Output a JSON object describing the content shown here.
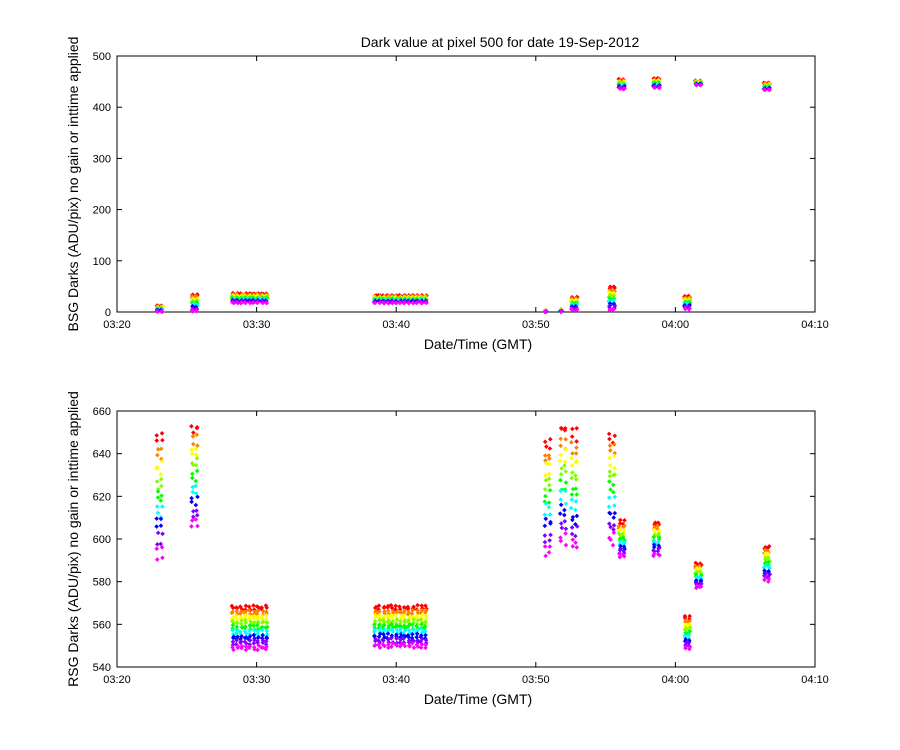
{
  "chart_data": [
    {
      "type": "scatter",
      "title": "Dark value at pixel 500 for date 19-Sep-2012",
      "xlabel": "Date/Time (GMT)",
      "ylabel": "BSG Darks (ADU/pix) no gain or inttime applied",
      "x_tick_labels": [
        "03:20",
        "03:30",
        "03:40",
        "03:50",
        "04:00",
        "04:10"
      ],
      "x_ticks_minutes_after_0320": [
        0,
        10,
        20,
        30,
        40,
        50
      ],
      "xlim_minutes_after_0320": [
        0,
        50
      ],
      "ylim": [
        0,
        500
      ],
      "y_ticks": [
        0,
        100,
        200,
        300,
        400,
        500
      ],
      "grid": false,
      "series_colors": [
        "#ff0000",
        "#ff8000",
        "#ffff00",
        "#80ff00",
        "#00ff00",
        "#00ffff",
        "#0000ff",
        "#8000ff",
        "#ff00ff"
      ],
      "clusters": [
        {
          "x": [
            2.9,
            3.2
          ],
          "low": 0,
          "high": 13
        },
        {
          "x": [
            5.4,
            5.7
          ],
          "low": 0,
          "high": 35
        },
        {
          "x": [
            8.3,
            8.6,
            8.9,
            9.2,
            9.5,
            9.8,
            10.1,
            10.4,
            10.7
          ],
          "low": 17,
          "high": 37
        },
        {
          "x": [
            18.5,
            18.8,
            19.1,
            19.4,
            19.7,
            20.0,
            20.3,
            20.6,
            20.9,
            21.2,
            21.5,
            21.8,
            22.1
          ],
          "low": 17,
          "high": 33
        },
        {
          "x": [
            30.7
          ],
          "low": 0,
          "high": 3
        },
        {
          "x": [
            31.8
          ],
          "low": 0,
          "high": 5
        },
        {
          "x": [
            32.6,
            32.9
          ],
          "low": 3,
          "high": 30
        },
        {
          "x": [
            35.3,
            35.6
          ],
          "low": 2,
          "high": 50
        },
        {
          "x": [
            36.0,
            36.3
          ],
          "low": 435,
          "high": 455
        },
        {
          "x": [
            38.5,
            38.8
          ],
          "low": 437,
          "high": 457
        },
        {
          "x": [
            40.7,
            41.0
          ],
          "low": 5,
          "high": 32
        },
        {
          "x": [
            41.5,
            41.8
          ],
          "low": 443,
          "high": 452
        },
        {
          "x": [
            46.4,
            46.7
          ],
          "low": 433,
          "high": 448
        }
      ]
    },
    {
      "type": "scatter",
      "title": "",
      "xlabel": "Date/Time (GMT)",
      "ylabel": "RSG Darks (ADU/pix) no gain or inttime applied",
      "x_tick_labels": [
        "03:20",
        "03:30",
        "03:40",
        "03:50",
        "04:00",
        "04:10"
      ],
      "x_ticks_minutes_after_0320": [
        0,
        10,
        20,
        30,
        40,
        50
      ],
      "xlim_minutes_after_0320": [
        0,
        50
      ],
      "ylim": [
        540,
        660
      ],
      "y_ticks": [
        540,
        560,
        580,
        600,
        620,
        640,
        660
      ],
      "grid": false,
      "series_colors": [
        "#ff0000",
        "#ff8000",
        "#ffff00",
        "#80ff00",
        "#00ff00",
        "#00ffff",
        "#0000ff",
        "#8000ff",
        "#ff00ff"
      ],
      "clusters": [
        {
          "x": [
            2.9,
            3.2
          ],
          "low": 590,
          "high": 650
        },
        {
          "x": [
            5.4,
            5.7
          ],
          "low": 604,
          "high": 655
        },
        {
          "x": [
            8.3,
            8.6,
            8.9,
            9.2,
            9.5,
            9.8,
            10.1,
            10.4,
            10.7
          ],
          "low": 548,
          "high": 569
        },
        {
          "x": [
            18.5,
            18.8,
            19.1,
            19.4,
            19.7,
            20.0,
            20.3,
            20.6,
            20.9,
            21.2,
            21.5,
            21.8,
            22.1
          ],
          "low": 549,
          "high": 569
        },
        {
          "x": [
            30.7,
            31.0
          ],
          "low": 592,
          "high": 648
        },
        {
          "x": [
            31.8,
            32.1
          ],
          "low": 597,
          "high": 655
        },
        {
          "x": [
            32.6,
            32.9
          ],
          "low": 594,
          "high": 652
        },
        {
          "x": [
            35.3,
            35.6
          ],
          "low": 597,
          "high": 651
        },
        {
          "x": [
            36.0,
            36.3
          ],
          "low": 591,
          "high": 609
        },
        {
          "x": [
            38.5,
            38.8
          ],
          "low": 592,
          "high": 608
        },
        {
          "x": [
            40.7,
            41.0
          ],
          "low": 548,
          "high": 564
        },
        {
          "x": [
            41.5,
            41.8
          ],
          "low": 577,
          "high": 589
        },
        {
          "x": [
            46.4,
            46.7
          ],
          "low": 580,
          "high": 597
        }
      ]
    }
  ]
}
